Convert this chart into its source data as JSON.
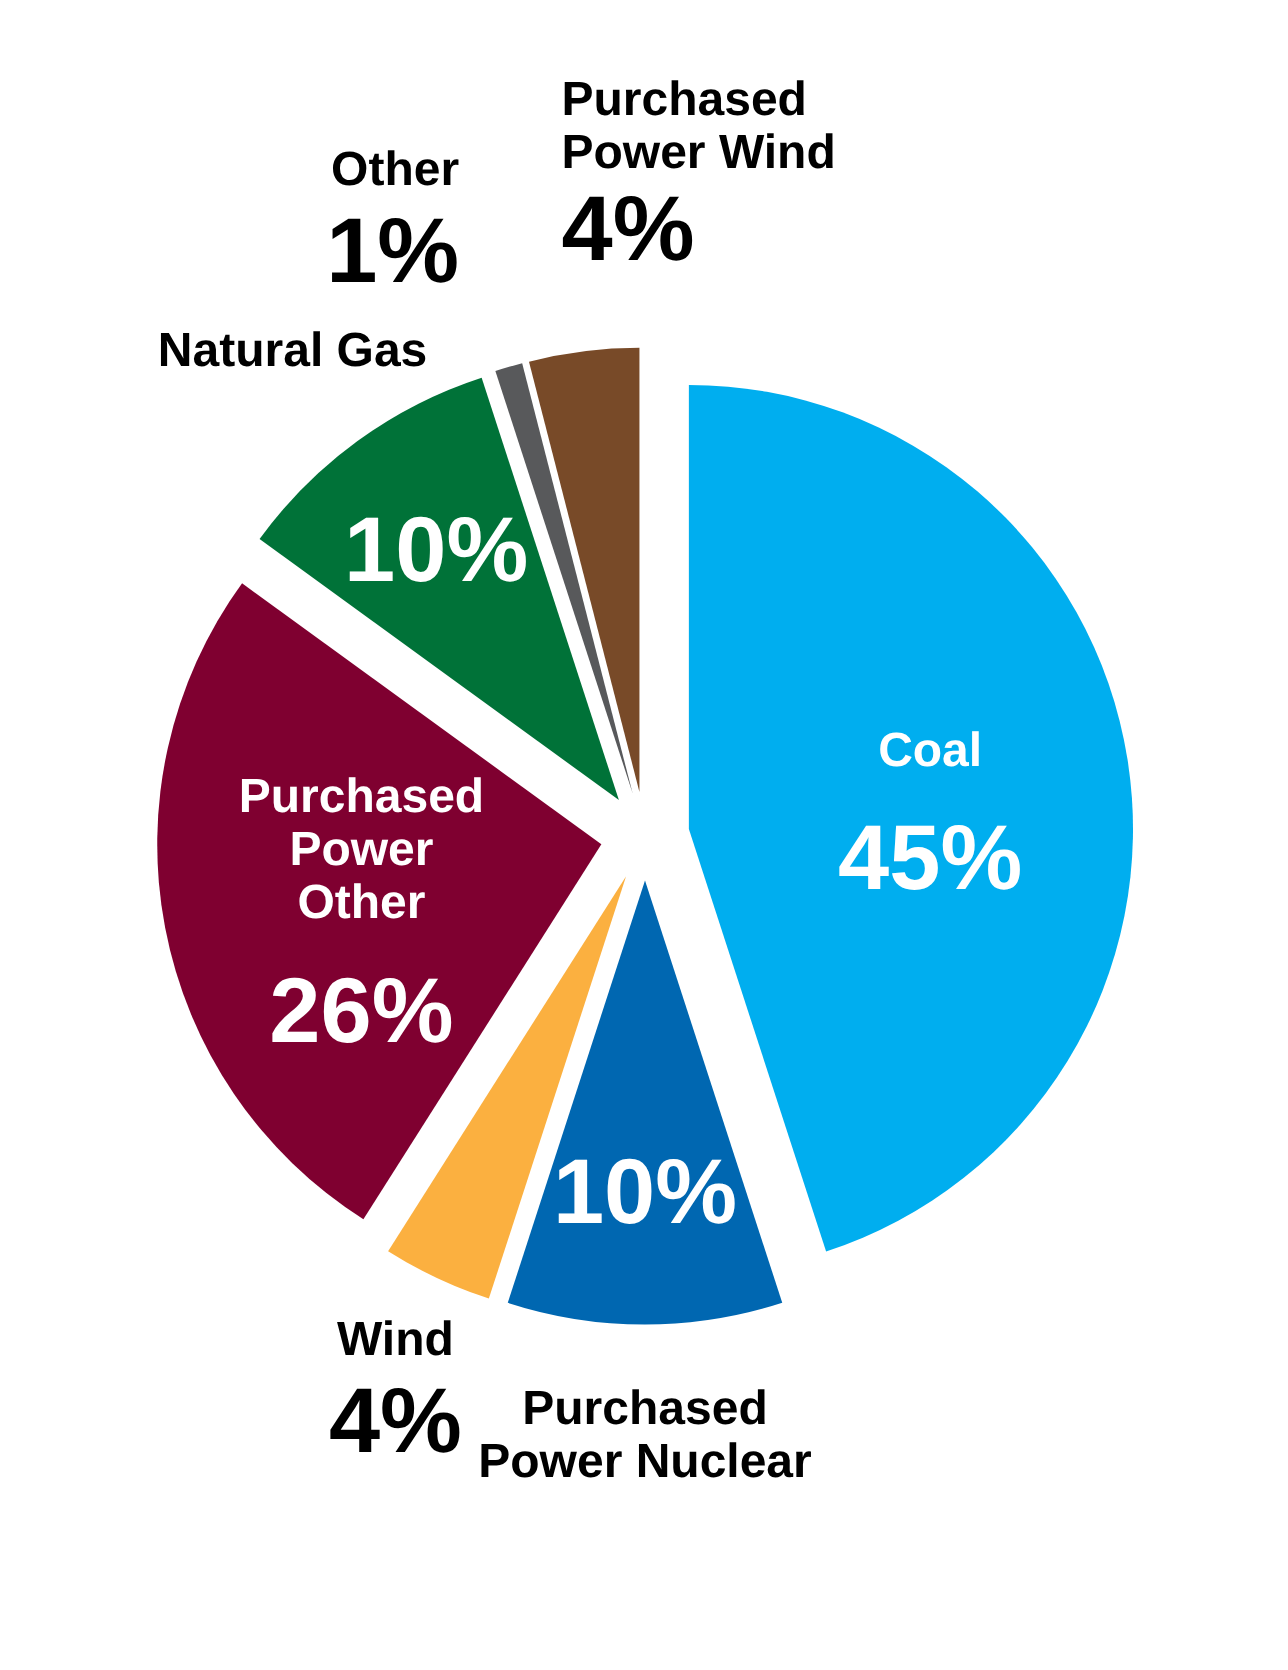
{
  "chart_data": {
    "type": "pie",
    "categories": [
      "Coal",
      "Purchased Power Nuclear",
      "Wind",
      "Purchased Power Other",
      "Natural Gas",
      "Other",
      "Purchased Power Wind"
    ],
    "values": [
      45,
      10,
      4,
      26,
      10,
      1,
      4
    ],
    "colors": [
      "#00aeef",
      "#0067b1",
      "#fbb040",
      "#7f0030",
      "#007238",
      "#58595b",
      "#784a28"
    ],
    "value_labels": [
      "45%",
      "10%",
      "4%",
      "26%",
      "10%",
      "1%",
      "4%"
    ]
  }
}
